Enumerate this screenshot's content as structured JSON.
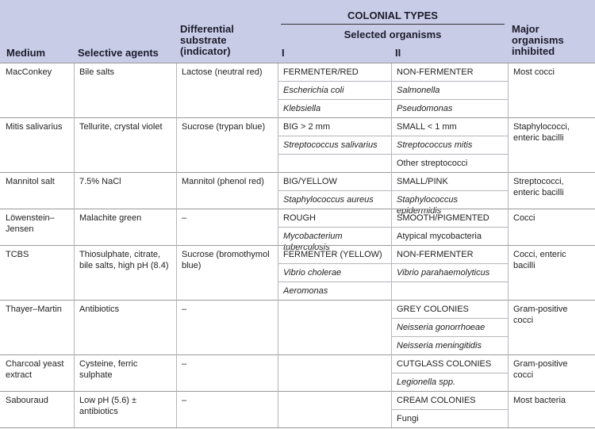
{
  "header": {
    "medium": "Medium",
    "selective_agents": "Selective agents",
    "substrate": "Differential substrate (indicator)",
    "colonial_types": "COLONIAL TYPES",
    "selected_organisms": "Selected organisms",
    "col_i": "I",
    "col_ii": "II",
    "inhibited": "Major organisms inhibited"
  },
  "rows": [
    {
      "medium": "MacConkey",
      "selective": "Bile salts",
      "substrate": "Lactose (neutral red)",
      "inhibited": "Most cocci",
      "i": [
        "FERMENTER/RED",
        "Escherichia coli",
        "Klebsiella"
      ],
      "ii": [
        "NON-FERMENTER",
        "Salmonella",
        "Pseudomonas"
      ]
    },
    {
      "medium": "Mitis salivarius",
      "selective": "Tellurite, crystal violet",
      "substrate": "Sucrose (trypan blue)",
      "inhibited": "Staphylococci, enteric bacilli",
      "i": [
        "BIG > 2 mm",
        "Streptococcus salivarius"
      ],
      "ii": [
        "SMALL < 1 mm",
        "Streptococcus mitis",
        "Other streptococci"
      ]
    },
    {
      "medium": "Mannitol salt",
      "selective": "7.5% NaCl",
      "substrate": "Mannitol (phenol red)",
      "inhibited": "Streptococci, enteric bacilli",
      "i": [
        "BIG/YELLOW",
        "Staphylococcus aureus"
      ],
      "ii": [
        "SMALL/PINK",
        "Staphylococcus epidermidis"
      ]
    },
    {
      "medium": "Löwenstein–Jensen",
      "selective": "Malachite green",
      "substrate": "–",
      "inhibited": "Cocci",
      "i": [
        "ROUGH",
        "Mycobacterium tuberculosis"
      ],
      "ii": [
        "SMOOTH/PIGMENTED",
        "Atypical mycobacteria"
      ]
    },
    {
      "medium": "TCBS",
      "selective": "Thiosulphate, citrate, bile salts, high pH (8.4)",
      "substrate": "Sucrose (bromothymol blue)",
      "inhibited": "Cocci, enteric bacilli",
      "i": [
        "FERMENTER (YELLOW)",
        "Vibrio cholerae",
        "Aeromonas"
      ],
      "ii": [
        "NON-FERMENTER",
        "Vibrio parahaemolyticus"
      ]
    },
    {
      "medium": "Thayer–Martin",
      "selective": "Antibiotics",
      "substrate": "–",
      "inhibited": "Gram-positive cocci",
      "i": [],
      "ii": [
        "GREY COLONIES",
        "Neisseria gonorrhoeae",
        "Neisseria meningitidis"
      ]
    },
    {
      "medium": "Charcoal yeast extract",
      "selective": "Cysteine, ferric sulphate",
      "substrate": "–",
      "inhibited": "Gram-positive cocci",
      "i": [],
      "ii": [
        "CUTGLASS COLONIES",
        "Legionella spp."
      ]
    },
    {
      "medium": "Sabouraud",
      "selective": "Low pH (5.6) ± antibiotics",
      "substrate": "–",
      "inhibited": "Most bacteria",
      "i": [],
      "ii": [
        "CREAM COLONIES",
        "Fungi"
      ]
    }
  ]
}
